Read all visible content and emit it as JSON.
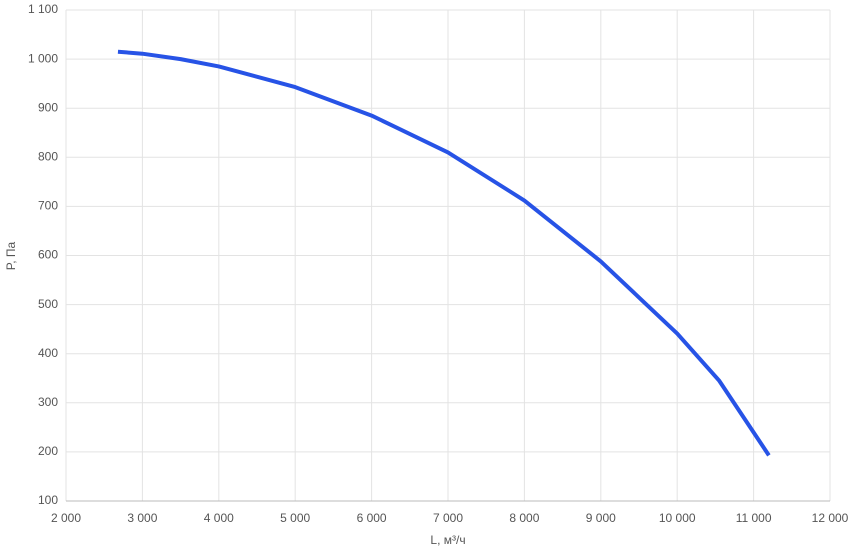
{
  "chart_data": {
    "type": "line",
    "x_label": "L, м³/ч",
    "y_label": "P, Па",
    "x": [
      2680,
      3000,
      3500,
      4000,
      5000,
      6000,
      7000,
      8000,
      9000,
      10000,
      10550,
      11200
    ],
    "series": [
      {
        "color": "#2753e6",
        "values": [
          1015,
          1011,
          1000,
          985,
          943,
          885,
          810,
          712,
          588,
          441,
          345,
          193
        ]
      }
    ],
    "xlim": [
      2000,
      12000
    ],
    "xticks": [
      {
        "value": 2000,
        "label": "2 000"
      },
      {
        "value": 3000,
        "label": "3 000"
      },
      {
        "value": 4000,
        "label": "4 000"
      },
      {
        "value": 5000,
        "label": "5 000"
      },
      {
        "value": 6000,
        "label": "6 000"
      },
      {
        "value": 7000,
        "label": "7 000"
      },
      {
        "value": 8000,
        "label": "8 000"
      },
      {
        "value": 9000,
        "label": "9 000"
      },
      {
        "value": 10000,
        "label": "10 000"
      },
      {
        "value": 11000,
        "label": "11 000"
      },
      {
        "value": 12000,
        "label": "12 000"
      }
    ],
    "ylim": [
      100,
      1100
    ],
    "yticks": [
      100,
      200,
      300,
      400,
      500,
      600,
      700,
      800,
      900,
      {
        "value": 1000,
        "label": "1 000"
      },
      {
        "value": 1100,
        "label": "1 100"
      }
    ],
    "grid": true
  }
}
